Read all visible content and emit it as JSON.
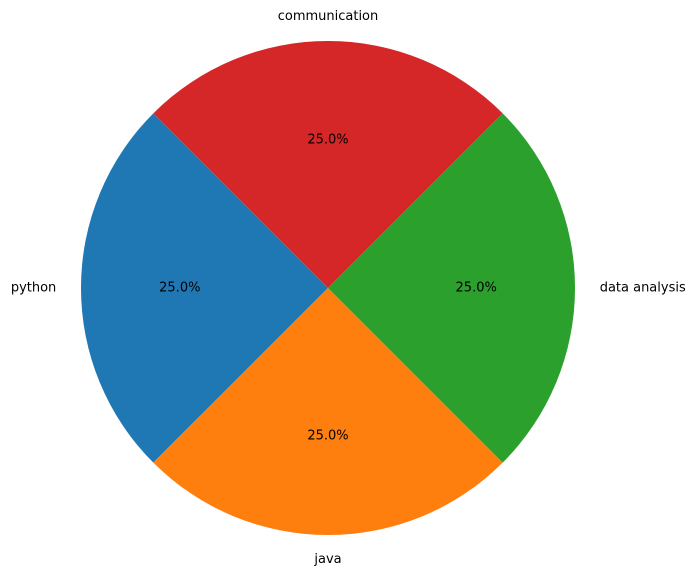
{
  "chart_data": {
    "type": "pie",
    "slices": [
      {
        "label": "python",
        "value": 25.0,
        "pct_label": "25.0%",
        "color": "#1f77b4"
      },
      {
        "label": "java",
        "value": 25.0,
        "pct_label": "25.0%",
        "color": "#ff7f0e"
      },
      {
        "label": "data analysis",
        "value": 25.0,
        "pct_label": "25.0%",
        "color": "#2ca02c"
      },
      {
        "label": "communication",
        "value": 25.0,
        "pct_label": "25.0%",
        "color": "#d62728"
      }
    ]
  }
}
